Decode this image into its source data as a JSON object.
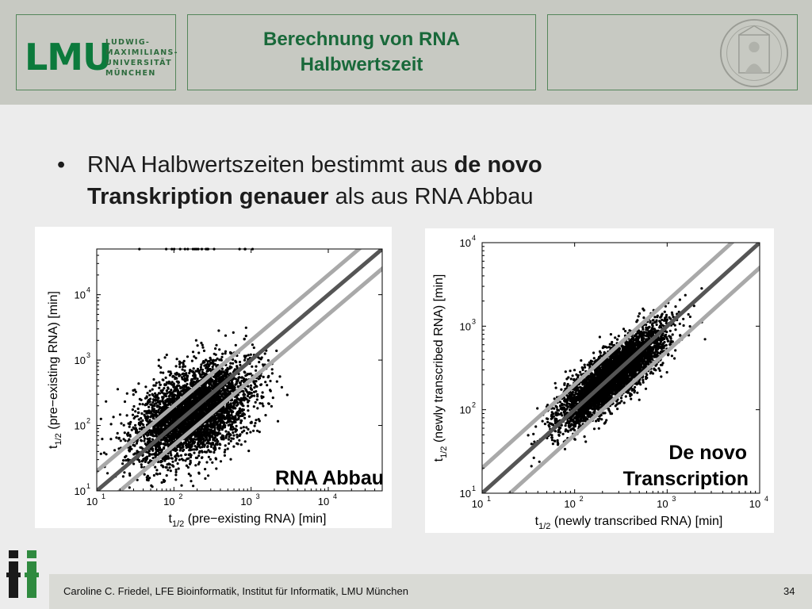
{
  "header": {
    "logo_text": "LMU",
    "university_lines": [
      "LUDWIG-",
      "MAXIMILIANS-",
      "UNIVERSITÄT",
      "MÜNCHEN"
    ],
    "title_line1": "Berechnung von RNA",
    "title_line2": "Halbwertszeit",
    "seal_icon": "university-seal-icon"
  },
  "bullet": {
    "marker": "•",
    "part1": "RNA Halbwertszeiten bestimmt aus ",
    "bold1": "de novo Transkription genauer",
    "part2": " als aus RNA Abbau"
  },
  "colors": {
    "header_bg": "#c7c9c2",
    "accent_green": "#19693a",
    "border_green": "#54865a"
  },
  "chart_data": [
    {
      "type": "scatter",
      "title": "",
      "annotation": "RNA Abbau",
      "xlabel_main": "t",
      "xlabel_sub": "1/2",
      "xlabel_rest": " (pre−existing RNA) [min]",
      "ylabel_main": "t",
      "ylabel_sub": "1/2",
      "ylabel_rest": " (pre−existing RNA) [min]",
      "xscale": "log",
      "yscale": "log",
      "xlim": [
        10,
        50000
      ],
      "ylim": [
        10,
        50000
      ],
      "xticks": [
        "10",
        "10",
        "10",
        "10"
      ],
      "xtick_exp": [
        "1",
        "2",
        "3",
        "4"
      ],
      "yticks": [
        "10",
        "10",
        "10",
        "10"
      ],
      "ytick_exp": [
        "1",
        "2",
        "3",
        "4"
      ],
      "diagonal_lines": [
        "y = x",
        "y = 2x",
        "y = x/2"
      ],
      "center_log10": [
        2.25,
        2.2
      ],
      "spread_along": 0.45,
      "spread_across": 0.27,
      "n_points": 4200,
      "outlier_ceiling": 50000
    },
    {
      "type": "scatter",
      "title": "",
      "annotation_line1": "De novo",
      "annotation_line2": "Transcription",
      "xlabel_main": "t",
      "xlabel_sub": "1/2",
      "xlabel_rest": " (newly transcribed RNA) [min]",
      "ylabel_main": "t",
      "ylabel_sub": "1/2",
      "ylabel_rest": " (newly transcribed RNA) [min]",
      "xscale": "log",
      "yscale": "log",
      "xlim": [
        10,
        10000
      ],
      "ylim": [
        10,
        10000
      ],
      "xticks": [
        "10",
        "10",
        "10",
        "10"
      ],
      "xtick_exp": [
        "1",
        "2",
        "3",
        "4"
      ],
      "yticks": [
        "10",
        "10",
        "10",
        "10"
      ],
      "ytick_exp": [
        "1",
        "2",
        "3",
        "4"
      ],
      "diagonal_lines": [
        "y = x",
        "y = 2x",
        "y = x/2"
      ],
      "center_log10": [
        2.4,
        2.4
      ],
      "spread_along": 0.38,
      "spread_across": 0.12,
      "n_points": 4500
    }
  ],
  "footer": {
    "logo_icon": "bioinformatics-logo-icon",
    "text": "Caroline C. Friedel, LFE Bioinformatik, Institut für Informatik, LMU München",
    "page": "34"
  }
}
